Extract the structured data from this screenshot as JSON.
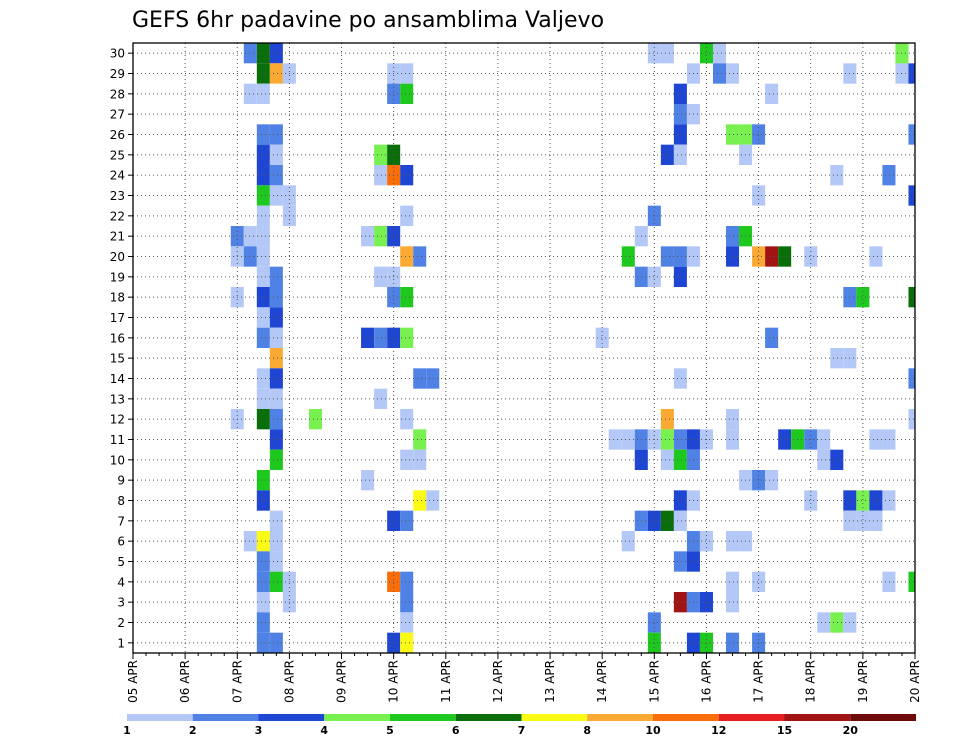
{
  "chart_data": {
    "type": "heatmap",
    "title": "GEFS 6hr padavine po ansamblima Valjevo",
    "x_tick_labels": [
      "05 APR",
      "06 APR",
      "07 APR",
      "08 APR",
      "09 APR",
      "10 APR",
      "11 APR",
      "12 APR",
      "13 APR",
      "14 APR",
      "15 APR",
      "16 APR",
      "17 APR",
      "18 APR",
      "19 APR",
      "20 APR"
    ],
    "y_tick_labels": [
      "1",
      "2",
      "3",
      "4",
      "5",
      "6",
      "7",
      "8",
      "9",
      "10",
      "11",
      "12",
      "13",
      "14",
      "15",
      "16",
      "17",
      "18",
      "19",
      "20",
      "21",
      "22",
      "23",
      "24",
      "25",
      "26",
      "27",
      "28",
      "29",
      "30"
    ],
    "x_range_steps": [
      0,
      60
    ],
    "y_range": [
      0,
      30
    ],
    "steps_per_day": 4,
    "grid": "dotted",
    "legend": {
      "placement": "bottom",
      "labels": [
        "1",
        "2",
        "3",
        "4",
        "5",
        "6",
        "7",
        "8",
        "10",
        "12",
        "15",
        "20"
      ],
      "colors": [
        "#b4c8f8",
        "#5082e6",
        "#1e46d2",
        "#78f050",
        "#1ec81e",
        "#0a6e0a",
        "#fafa14",
        "#faaa32",
        "#fa6e0a",
        "#e61e1e",
        "#a01414",
        "#6e0a0a"
      ]
    },
    "cells": [
      [
        9,
        30,
        2
      ],
      [
        10,
        30,
        6
      ],
      [
        11,
        30,
        3
      ],
      [
        40,
        30,
        1
      ],
      [
        41,
        30,
        1
      ],
      [
        44,
        30,
        5
      ],
      [
        45,
        30,
        1
      ],
      [
        59,
        30,
        4
      ],
      [
        59,
        30,
        4
      ],
      [
        10,
        29,
        6
      ],
      [
        11,
        29,
        8
      ],
      [
        12,
        29,
        1
      ],
      [
        20,
        29,
        1
      ],
      [
        21,
        29,
        1
      ],
      [
        43,
        29,
        1
      ],
      [
        45,
        29,
        2
      ],
      [
        46,
        29,
        1
      ],
      [
        55,
        29,
        1
      ],
      [
        59,
        29,
        1
      ],
      [
        60,
        29,
        3
      ],
      [
        9,
        28,
        1
      ],
      [
        10,
        28,
        1
      ],
      [
        20,
        28,
        2
      ],
      [
        21,
        28,
        5
      ],
      [
        42,
        28,
        3
      ],
      [
        49,
        28,
        1
      ],
      [
        42,
        27,
        2
      ],
      [
        43,
        27,
        1
      ],
      [
        10,
        26,
        2
      ],
      [
        11,
        26,
        2
      ],
      [
        42,
        26,
        3
      ],
      [
        46,
        26,
        4
      ],
      [
        47,
        26,
        4
      ],
      [
        48,
        26,
        2
      ],
      [
        60,
        26,
        2
      ],
      [
        10,
        25,
        3
      ],
      [
        11,
        25,
        1
      ],
      [
        19,
        25,
        4
      ],
      [
        20,
        25,
        6
      ],
      [
        41,
        25,
        3
      ],
      [
        42,
        25,
        1
      ],
      [
        47,
        25,
        1
      ],
      [
        10,
        24,
        3
      ],
      [
        11,
        24,
        2
      ],
      [
        19,
        24,
        1
      ],
      [
        20,
        24,
        9
      ],
      [
        21,
        24,
        3
      ],
      [
        54,
        24,
        1
      ],
      [
        58,
        24,
        2
      ],
      [
        10,
        23,
        5
      ],
      [
        11,
        23,
        1
      ],
      [
        12,
        23,
        1
      ],
      [
        48,
        23,
        1
      ],
      [
        60,
        23,
        3
      ],
      [
        10,
        22,
        1
      ],
      [
        12,
        22,
        1
      ],
      [
        21,
        22,
        1
      ],
      [
        40,
        22,
        2
      ],
      [
        8,
        21,
        2
      ],
      [
        9,
        21,
        1
      ],
      [
        10,
        21,
        1
      ],
      [
        18,
        21,
        1
      ],
      [
        19,
        21,
        4
      ],
      [
        20,
        21,
        3
      ],
      [
        39,
        21,
        1
      ],
      [
        46,
        21,
        2
      ],
      [
        47,
        21,
        5
      ],
      [
        8,
        20,
        1
      ],
      [
        9,
        20,
        2
      ],
      [
        10,
        20,
        1
      ],
      [
        21,
        20,
        8
      ],
      [
        22,
        20,
        2
      ],
      [
        38,
        20,
        5
      ],
      [
        41,
        20,
        2
      ],
      [
        42,
        20,
        2
      ],
      [
        43,
        20,
        1
      ],
      [
        46,
        20,
        3
      ],
      [
        48,
        20,
        8
      ],
      [
        49,
        20,
        11
      ],
      [
        50,
        20,
        6
      ],
      [
        52,
        20,
        1
      ],
      [
        57,
        20,
        1
      ],
      [
        10,
        19,
        1
      ],
      [
        11,
        19,
        2
      ],
      [
        19,
        19,
        1
      ],
      [
        20,
        19,
        1
      ],
      [
        39,
        19,
        2
      ],
      [
        40,
        19,
        1
      ],
      [
        42,
        19,
        3
      ],
      [
        8,
        18,
        1
      ],
      [
        10,
        18,
        3
      ],
      [
        11,
        18,
        2
      ],
      [
        20,
        18,
        2
      ],
      [
        21,
        18,
        5
      ],
      [
        55,
        18,
        2
      ],
      [
        56,
        18,
        5
      ],
      [
        60,
        18,
        6
      ],
      [
        10,
        17,
        1
      ],
      [
        11,
        17,
        3
      ],
      [
        10,
        16,
        2
      ],
      [
        11,
        16,
        1
      ],
      [
        18,
        16,
        3
      ],
      [
        19,
        16,
        2
      ],
      [
        20,
        16,
        3
      ],
      [
        21,
        16,
        4
      ],
      [
        36,
        16,
        1
      ],
      [
        49,
        16,
        2
      ],
      [
        11,
        15,
        8
      ],
      [
        54,
        15,
        1
      ],
      [
        55,
        15,
        1
      ],
      [
        10,
        14,
        1
      ],
      [
        11,
        14,
        3
      ],
      [
        22,
        14,
        2
      ],
      [
        23,
        14,
        2
      ],
      [
        42,
        14,
        1
      ],
      [
        60,
        14,
        2
      ],
      [
        10,
        13,
        1
      ],
      [
        11,
        13,
        1
      ],
      [
        19,
        13,
        1
      ],
      [
        8,
        12,
        1
      ],
      [
        10,
        12,
        6
      ],
      [
        11,
        12,
        2
      ],
      [
        14,
        12,
        4
      ],
      [
        21,
        12,
        1
      ],
      [
        41,
        12,
        8
      ],
      [
        46,
        12,
        1
      ],
      [
        60,
        12,
        1
      ],
      [
        11,
        11,
        3
      ],
      [
        22,
        11,
        4
      ],
      [
        37,
        11,
        1
      ],
      [
        38,
        11,
        1
      ],
      [
        39,
        11,
        2
      ],
      [
        40,
        11,
        1
      ],
      [
        41,
        11,
        4
      ],
      [
        42,
        11,
        2
      ],
      [
        43,
        11,
        3
      ],
      [
        44,
        11,
        1
      ],
      [
        46,
        11,
        1
      ],
      [
        50,
        11,
        3
      ],
      [
        51,
        11,
        5
      ],
      [
        52,
        11,
        2
      ],
      [
        53,
        11,
        1
      ],
      [
        57,
        11,
        1
      ],
      [
        58,
        11,
        1
      ],
      [
        11,
        10,
        5
      ],
      [
        21,
        10,
        1
      ],
      [
        22,
        10,
        1
      ],
      [
        39,
        10,
        3
      ],
      [
        41,
        10,
        1
      ],
      [
        42,
        10,
        5
      ],
      [
        43,
        10,
        2
      ],
      [
        53,
        10,
        1
      ],
      [
        54,
        10,
        3
      ],
      [
        10,
        9,
        5
      ],
      [
        18,
        9,
        1
      ],
      [
        47,
        9,
        1
      ],
      [
        48,
        9,
        2
      ],
      [
        49,
        9,
        1
      ],
      [
        10,
        8,
        3
      ],
      [
        22,
        8,
        7
      ],
      [
        23,
        8,
        1
      ],
      [
        42,
        8,
        3
      ],
      [
        43,
        8,
        1
      ],
      [
        52,
        8,
        1
      ],
      [
        55,
        8,
        3
      ],
      [
        56,
        8,
        4
      ],
      [
        57,
        8,
        3
      ],
      [
        58,
        8,
        1
      ],
      [
        11,
        7,
        1
      ],
      [
        20,
        7,
        3
      ],
      [
        21,
        7,
        2
      ],
      [
        39,
        7,
        2
      ],
      [
        40,
        7,
        3
      ],
      [
        41,
        7,
        6
      ],
      [
        42,
        7,
        1
      ],
      [
        55,
        7,
        1
      ],
      [
        56,
        7,
        1
      ],
      [
        57,
        7,
        1
      ],
      [
        9,
        6,
        1
      ],
      [
        10,
        6,
        7
      ],
      [
        11,
        6,
        1
      ],
      [
        38,
        6,
        1
      ],
      [
        43,
        6,
        2
      ],
      [
        44,
        6,
        1
      ],
      [
        46,
        6,
        1
      ],
      [
        47,
        6,
        1
      ],
      [
        10,
        5,
        2
      ],
      [
        11,
        5,
        1
      ],
      [
        42,
        5,
        2
      ],
      [
        43,
        5,
        3
      ],
      [
        10,
        4,
        2
      ],
      [
        11,
        4,
        5
      ],
      [
        12,
        4,
        1
      ],
      [
        20,
        4,
        9
      ],
      [
        21,
        4,
        2
      ],
      [
        46,
        4,
        1
      ],
      [
        48,
        4,
        1
      ],
      [
        58,
        4,
        1
      ],
      [
        60,
        4,
        5
      ],
      [
        10,
        3,
        1
      ],
      [
        12,
        3,
        1
      ],
      [
        21,
        3,
        2
      ],
      [
        42,
        3,
        11
      ],
      [
        43,
        3,
        2
      ],
      [
        44,
        3,
        3
      ],
      [
        46,
        3,
        1
      ],
      [
        10,
        2,
        2
      ],
      [
        21,
        2,
        1
      ],
      [
        40,
        2,
        2
      ],
      [
        53,
        2,
        1
      ],
      [
        54,
        2,
        4
      ],
      [
        55,
        2,
        1
      ],
      [
        10,
        1,
        2
      ],
      [
        11,
        1,
        2
      ],
      [
        20,
        1,
        3
      ],
      [
        21,
        1,
        7
      ],
      [
        40,
        1,
        5
      ],
      [
        43,
        1,
        3
      ],
      [
        44,
        1,
        5
      ],
      [
        46,
        1,
        2
      ],
      [
        48,
        1,
        2
      ]
    ]
  }
}
